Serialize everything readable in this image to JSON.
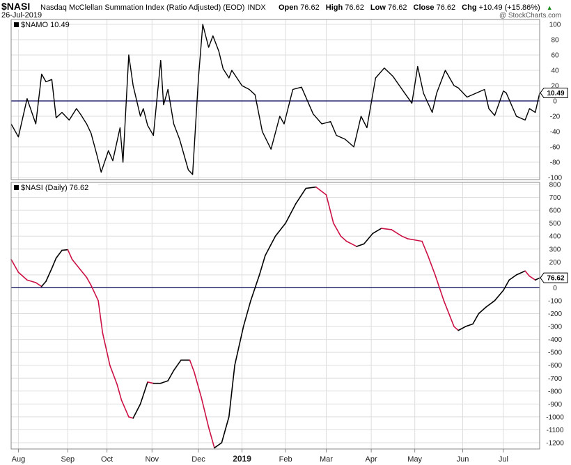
{
  "header": {
    "symbol": "$NASI",
    "description": "Nasdaq McClellan Summation Index (Ratio Adjusted) (EOD)",
    "exchange": "INDX",
    "date": "26-Jul-2019",
    "credit": "@ StockCharts.com",
    "open_label": "Open",
    "open_value": "76.62",
    "high_label": "High",
    "high_value": "76.62",
    "low_label": "Low",
    "low_value": "76.62",
    "close_label": "Close",
    "close_value": "76.62",
    "chg_label": "Chg",
    "chg_value": "+10.49 (+15.86%)",
    "up_arrow": "▲"
  },
  "colors": {
    "line": "#000000",
    "down": "#cc1144",
    "zero": "#000055",
    "grid": "#dddddd",
    "border": "#888888"
  },
  "chart_data": [
    {
      "type": "line",
      "title": "$NAMO 10.49",
      "last_value": "10.49",
      "ylim": [
        -100,
        100
      ],
      "yticks": [
        100,
        80,
        60,
        40,
        20,
        0,
        -20,
        -40,
        -60,
        -80,
        -100
      ],
      "x_ticks": [
        "Aug",
        "Sep",
        "Oct",
        "Nov",
        "Dec",
        "2019",
        "Feb",
        "Mar",
        "Apr",
        "May",
        "Jun",
        "Jul"
      ],
      "x_tick_dates": [
        "2018-08-01",
        "2018-09-04",
        "2018-10-01",
        "2018-11-01",
        "2018-12-03",
        "2019-01-02",
        "2019-02-01",
        "2019-03-01",
        "2019-04-01",
        "2019-05-01",
        "2019-06-03",
        "2019-07-01"
      ],
      "series": [
        {
          "x": [
            "2018-07-27",
            "2018-08-01",
            "2018-08-07",
            "2018-08-13",
            "2018-08-17",
            "2018-08-20",
            "2018-08-24",
            "2018-08-27",
            "2018-08-31",
            "2018-09-05",
            "2018-09-10",
            "2018-09-13",
            "2018-09-17",
            "2018-09-20",
            "2018-09-24",
            "2018-09-27",
            "2018-10-02",
            "2018-10-05",
            "2018-10-10",
            "2018-10-12",
            "2018-10-16",
            "2018-10-19",
            "2018-10-24",
            "2018-10-26",
            "2018-10-29",
            "2018-11-02",
            "2018-11-07",
            "2018-11-09",
            "2018-11-12",
            "2018-11-16",
            "2018-11-20",
            "2018-11-26",
            "2018-11-29",
            "2018-12-03",
            "2018-12-06",
            "2018-12-10",
            "2018-12-13",
            "2018-12-17",
            "2018-12-20",
            "2018-12-24",
            "2018-12-26",
            "2019-01-02",
            "2019-01-07",
            "2019-01-11",
            "2019-01-16",
            "2019-01-22",
            "2019-01-28",
            "2019-01-31",
            "2019-02-06",
            "2019-02-12",
            "2019-02-20",
            "2019-02-26",
            "2019-03-04",
            "2019-03-08",
            "2019-03-14",
            "2019-03-20",
            "2019-03-25",
            "2019-03-29",
            "2019-04-04",
            "2019-04-10",
            "2019-04-16",
            "2019-04-23",
            "2019-04-29",
            "2019-05-03",
            "2019-05-07",
            "2019-05-13",
            "2019-05-16",
            "2019-05-22",
            "2019-05-28",
            "2019-05-31",
            "2019-06-06",
            "2019-06-12",
            "2019-06-18",
            "2019-06-21",
            "2019-06-25",
            "2019-07-01",
            "2019-07-03",
            "2019-07-10",
            "2019-07-16",
            "2019-07-19",
            "2019-07-23",
            "2019-07-26"
          ],
          "values": [
            -30,
            -47,
            3,
            -30,
            35,
            25,
            28,
            -22,
            -15,
            -25,
            -10,
            -18,
            -30,
            -42,
            -70,
            -93,
            -65,
            -78,
            -35,
            -80,
            60,
            20,
            -20,
            -10,
            -32,
            -45,
            53,
            -5,
            15,
            -30,
            -50,
            -90,
            -96,
            30,
            100,
            70,
            85,
            65,
            42,
            30,
            40,
            20,
            15,
            8,
            -40,
            -63,
            -20,
            -30,
            15,
            18,
            -17,
            -30,
            -27,
            -45,
            -50,
            -60,
            -20,
            -35,
            30,
            43,
            32,
            13,
            -3,
            45,
            10,
            -15,
            10,
            40,
            20,
            17,
            5,
            10,
            15,
            -10,
            -19,
            13,
            10.49,
            -20,
            -25,
            -10,
            -15,
            10.49
          ]
        }
      ]
    },
    {
      "type": "line",
      "title": "$NASI (Daily) 76.62",
      "last_value": "76.62",
      "ylim": [
        -1200,
        800
      ],
      "yticks": [
        800,
        700,
        600,
        500,
        400,
        300,
        200,
        100,
        0,
        -100,
        -200,
        -300,
        -400,
        -500,
        -600,
        -700,
        -800,
        -900,
        -1000,
        -1100,
        -1200
      ],
      "series": [
        {
          "x": [
            "2018-07-27",
            "2018-08-01",
            "2018-08-07",
            "2018-08-13",
            "2018-08-17",
            "2018-08-20",
            "2018-08-24",
            "2018-08-27",
            "2018-08-31",
            "2018-09-04",
            "2018-09-07",
            "2018-09-12",
            "2018-09-17",
            "2018-09-20",
            "2018-09-25",
            "2018-09-28",
            "2018-10-03",
            "2018-10-08",
            "2018-10-11",
            "2018-10-16",
            "2018-10-19",
            "2018-10-24",
            "2018-10-29",
            "2018-11-02",
            "2018-11-07",
            "2018-11-12",
            "2018-11-16",
            "2018-11-21",
            "2018-11-27",
            "2018-11-30",
            "2018-12-05",
            "2018-12-10",
            "2018-12-14",
            "2018-12-19",
            "2018-12-24",
            "2018-12-28",
            "2019-01-03",
            "2019-01-08",
            "2019-01-14",
            "2019-01-18",
            "2019-01-25",
            "2019-02-01",
            "2019-02-08",
            "2019-02-15",
            "2019-02-22",
            "2019-03-01",
            "2019-03-06",
            "2019-03-11",
            "2019-03-15",
            "2019-03-22",
            "2019-03-27",
            "2019-04-02",
            "2019-04-08",
            "2019-04-15",
            "2019-04-22",
            "2019-04-26",
            "2019-05-01",
            "2019-05-06",
            "2019-05-10",
            "2019-05-15",
            "2019-05-21",
            "2019-05-28",
            "2019-05-31",
            "2019-06-05",
            "2019-06-10",
            "2019-06-14",
            "2019-06-19",
            "2019-06-25",
            "2019-07-01",
            "2019-07-05",
            "2019-07-10",
            "2019-07-16",
            "2019-07-19",
            "2019-07-23",
            "2019-07-26"
          ],
          "values": [
            220,
            120,
            60,
            40,
            10,
            50,
            150,
            230,
            290,
            295,
            220,
            150,
            80,
            20,
            -100,
            -350,
            -600,
            -750,
            -870,
            -1000,
            -1010,
            -900,
            -730,
            -740,
            -740,
            -720,
            -640,
            -560,
            -560,
            -650,
            -850,
            -1080,
            -1240,
            -1200,
            -1000,
            -600,
            -300,
            -100,
            100,
            250,
            400,
            500,
            650,
            770,
            780,
            720,
            500,
            400,
            360,
            320,
            340,
            420,
            460,
            450,
            400,
            380,
            370,
            360,
            250,
            100,
            -100,
            -300,
            -330,
            -300,
            -280,
            -200,
            -150,
            -100,
            -20,
            60,
            100,
            130,
            90,
            60,
            76.62
          ]
        }
      ]
    }
  ]
}
